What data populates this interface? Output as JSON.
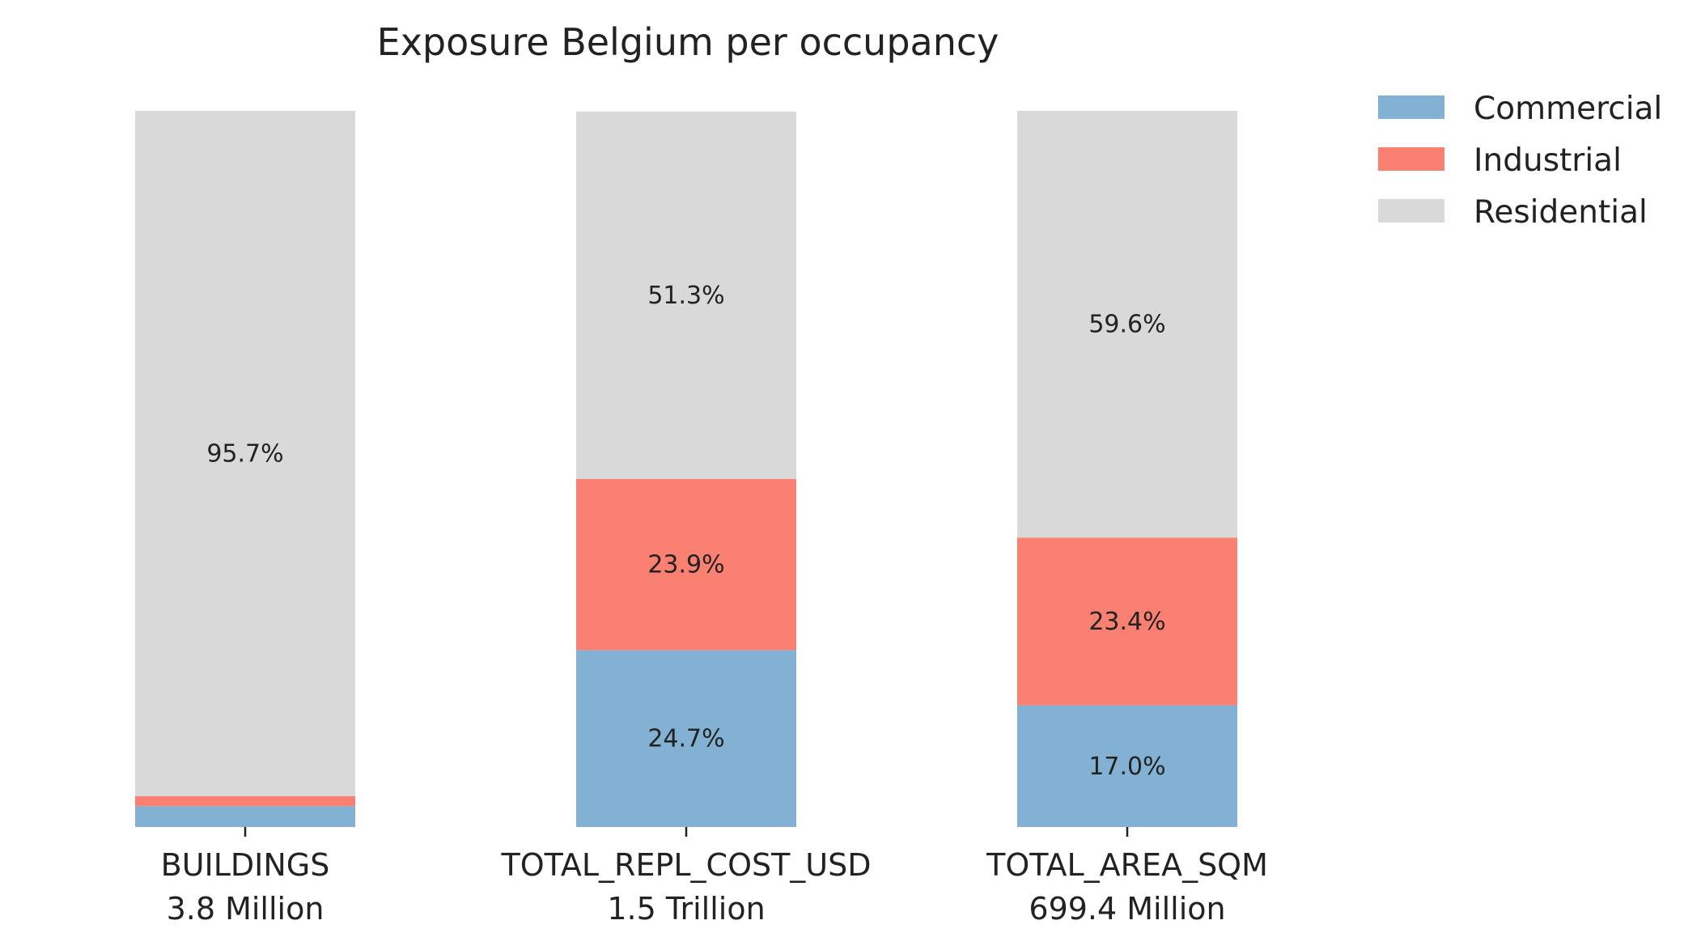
{
  "chart_data": {
    "type": "bar",
    "stacked": true,
    "normalized": true,
    "title": "Exposure Belgium per occupancy",
    "categories": [
      "BUILDINGS",
      "TOTAL_REPL_COST_USD",
      "TOTAL_AREA_SQM"
    ],
    "category_totals": [
      "3.8 Million",
      "1.5 Trillion",
      "699.4 Million"
    ],
    "series": [
      {
        "name": "Commercial",
        "color": "#82b1d3",
        "values": [
          2.9,
          24.7,
          17.0
        ],
        "labels": [
          "",
          "24.7%",
          "17.0%"
        ]
      },
      {
        "name": "Industrial",
        "color": "#fa8072",
        "values": [
          1.4,
          23.9,
          23.4
        ],
        "labels": [
          "",
          "23.9%",
          "23.4%"
        ]
      },
      {
        "name": "Residential",
        "color": "#d9d9d9",
        "values": [
          95.7,
          51.3,
          59.6
        ],
        "labels": [
          "95.7%",
          "51.3%",
          "59.6%"
        ]
      }
    ],
    "ylim": [
      0,
      100
    ],
    "xlabel": "",
    "ylabel": "",
    "grid": false,
    "legend_position": "top-right"
  }
}
